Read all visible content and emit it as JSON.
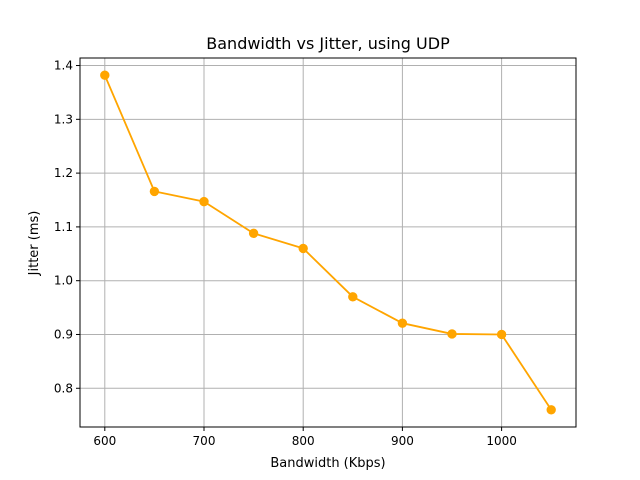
{
  "chart_data": {
    "type": "line",
    "title": "Bandwidth vs Jitter, using UDP",
    "xlabel": "Bandwidth (Kbps)",
    "ylabel": "Jitter (ms)",
    "xlim": [
      575,
      1075
    ],
    "ylim": [
      0.728,
      1.414
    ],
    "x_ticks": [
      600,
      700,
      800,
      900,
      1000
    ],
    "y_ticks": [
      0.8,
      0.9,
      1.0,
      1.1,
      1.2,
      1.3,
      1.4
    ],
    "x_tick_labels": [
      "600",
      "700",
      "800",
      "900",
      "1000"
    ],
    "y_tick_labels": [
      "0.8",
      "0.9",
      "1.0",
      "1.1",
      "1.2",
      "1.3",
      "1.4"
    ],
    "grid": true,
    "series": [
      {
        "color": "#ffa500",
        "marker": "circle",
        "x": [
          600,
          650,
          700,
          750,
          800,
          850,
          900,
          950,
          1000,
          1050
        ],
        "y": [
          1.382,
          1.166,
          1.147,
          1.088,
          1.06,
          0.97,
          0.921,
          0.901,
          0.9,
          0.76
        ]
      }
    ]
  }
}
